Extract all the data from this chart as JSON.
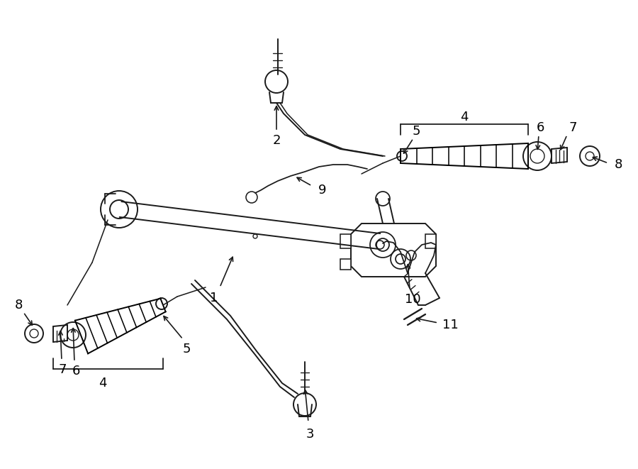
{
  "bg_color": "#ffffff",
  "lc": "#1a1a1a",
  "lw": 1.4,
  "figsize": [
    9.0,
    6.61
  ],
  "dpi": 100,
  "xlim": [
    0,
    900
  ],
  "ylim": [
    0,
    661
  ]
}
